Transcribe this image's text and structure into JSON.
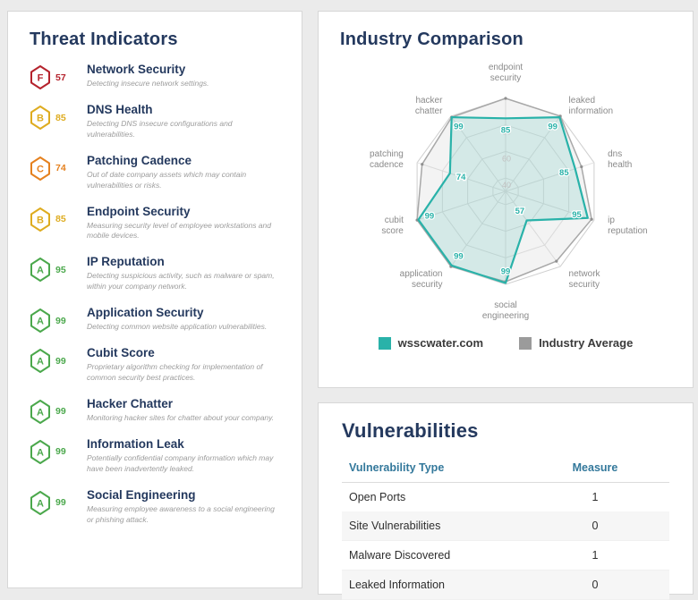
{
  "threat_indicators": {
    "title": "Threat Indicators",
    "items": [
      {
        "grade": "F",
        "score": "57",
        "color": "#b5232d",
        "name": "Network Security",
        "description": "Detecting insecure network settings."
      },
      {
        "grade": "B",
        "score": "85",
        "color": "#deac20",
        "name": "DNS Health",
        "description": "Detecting DNS insecure configurations and vulnerabilities."
      },
      {
        "grade": "C",
        "score": "74",
        "color": "#e5811f",
        "name": "Patching Cadence",
        "description": "Out of date company assets which may contain vulnerabilities or risks."
      },
      {
        "grade": "B",
        "score": "85",
        "color": "#deac20",
        "name": "Endpoint Security",
        "description": "Measuring security level of employee workstations and mobile devices."
      },
      {
        "grade": "A",
        "score": "95",
        "color": "#4ba84c",
        "name": "IP Reputation",
        "description": "Detecting suspicious activity, such as malware or spam, within your company network."
      },
      {
        "grade": "A",
        "score": "99",
        "color": "#4ba84c",
        "name": "Application Security",
        "description": "Detecting common website application vulnerabilities."
      },
      {
        "grade": "A",
        "score": "99",
        "color": "#4ba84c",
        "name": "Cubit Score",
        "description": "Proprietary algorithm checking for implementation of common security best practices."
      },
      {
        "grade": "A",
        "score": "99",
        "color": "#4ba84c",
        "name": "Hacker Chatter",
        "description": "Monitoring hacker sites for chatter about your company."
      },
      {
        "grade": "A",
        "score": "99",
        "color": "#4ba84c",
        "name": "Information Leak",
        "description": "Potentially confidential company information which may have been inadvertently leaked."
      },
      {
        "grade": "A",
        "score": "99",
        "color": "#4ba84c",
        "name": "Social Engineering",
        "description": "Measuring employee awareness to a social engineering or phishing attack."
      }
    ]
  },
  "industry_comparison": {
    "title": "Industry Comparison"
  },
  "chart_data": {
    "type": "radar",
    "title": "Industry Comparison",
    "categories": [
      "endpoint security",
      "leaked information",
      "dns health",
      "ip reputation",
      "network security",
      "social engineering",
      "application security",
      "cubit score",
      "patching cadence",
      "hacker chatter"
    ],
    "series": [
      {
        "name": "wsscwater.com",
        "color": "#29b2a9",
        "fill": "rgba(41,178,169,0.15)",
        "values": [
          85,
          99,
          85,
          95,
          57,
          99,
          99,
          99,
          74,
          99
        ],
        "show_value_labels": true
      },
      {
        "name": "Industry Average",
        "color": "#a8a8a8",
        "fill": "rgba(160,160,160,0.12)",
        "values": [
          100,
          100,
          90,
          98,
          95,
          98,
          100,
          100,
          96,
          99
        ],
        "show_value_labels": false
      }
    ],
    "rings": [
      40,
      60,
      80
    ],
    "scale": {
      "min": 30,
      "max": 100
    },
    "grid": true,
    "legend_position": "bottom"
  },
  "vulnerabilities": {
    "title": "Vulnerabilities",
    "columns": {
      "type": "Vulnerability Type",
      "measure": "Measure"
    },
    "rows": [
      {
        "type": "Open Ports",
        "measure": "1"
      },
      {
        "type": "Site Vulnerabilities",
        "measure": "0"
      },
      {
        "type": "Malware Discovered",
        "measure": "1"
      },
      {
        "type": "Leaked Information",
        "measure": "0"
      }
    ]
  }
}
